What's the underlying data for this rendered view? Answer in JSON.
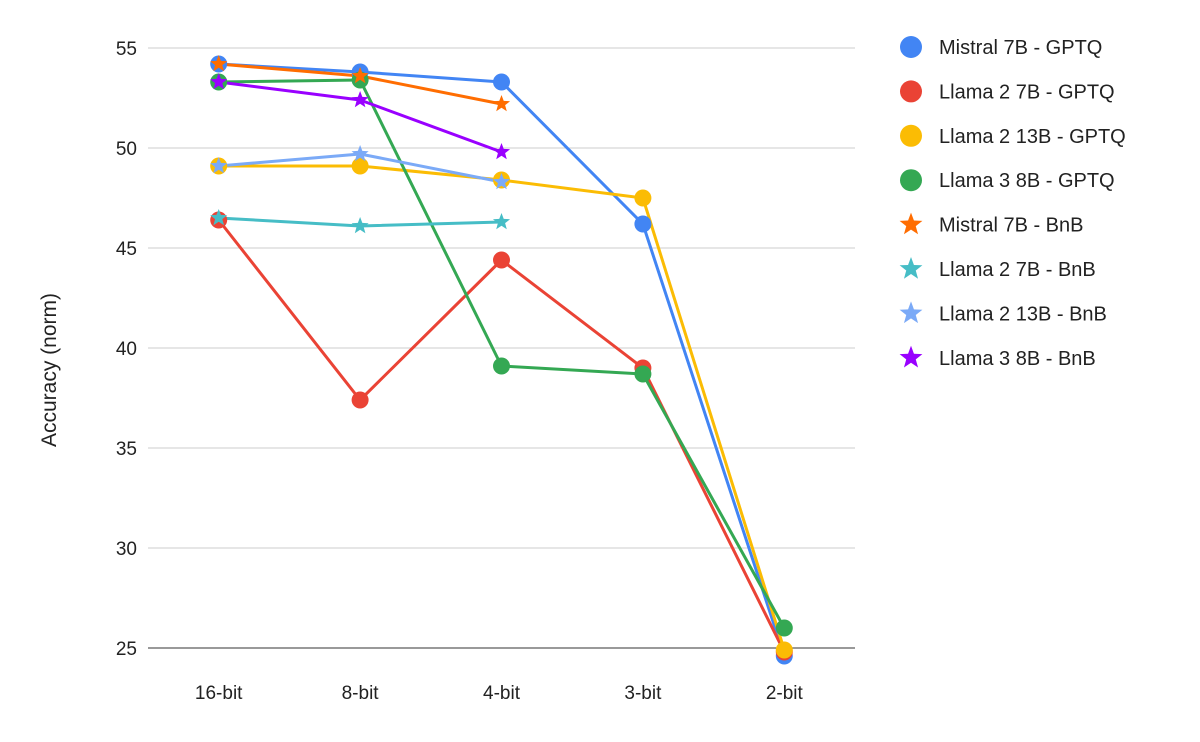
{
  "chart_data": {
    "type": "line",
    "title": "",
    "xlabel": "",
    "ylabel": "Accuracy (norm)",
    "categories": [
      "16-bit",
      "8-bit",
      "4-bit",
      "3-bit",
      "2-bit"
    ],
    "ylim": [
      25,
      55
    ],
    "yticks": [
      25,
      30,
      35,
      40,
      45,
      50,
      55
    ],
    "grid": true,
    "legend_position": "right",
    "series": [
      {
        "name": "Mistral 7B - GPTQ",
        "marker": "circle",
        "color": "#4285f4",
        "values": [
          54.2,
          53.8,
          53.3,
          46.2,
          24.6
        ]
      },
      {
        "name": "Llama 2 7B - GPTQ",
        "marker": "circle",
        "color": "#ea4335",
        "values": [
          46.4,
          37.4,
          44.4,
          39.0,
          24.8
        ]
      },
      {
        "name": "Llama 2 13B - GPTQ",
        "marker": "circle",
        "color": "#fbbc04",
        "values": [
          49.1,
          49.1,
          48.4,
          47.5,
          24.9
        ]
      },
      {
        "name": "Llama 3 8B - GPTQ",
        "marker": "circle",
        "color": "#34a853",
        "values": [
          53.3,
          53.4,
          39.1,
          38.7,
          26.0
        ]
      },
      {
        "name": "Mistral 7B - BnB",
        "marker": "star",
        "color": "#ff6d01",
        "values": [
          54.2,
          53.6,
          52.2,
          null,
          null
        ]
      },
      {
        "name": "Llama 2 7B - BnB",
        "marker": "star",
        "color": "#46bdc6",
        "values": [
          46.5,
          46.1,
          46.3,
          null,
          null
        ]
      },
      {
        "name": "Llama 2 13B - BnB",
        "marker": "star",
        "color": "#7baaf7",
        "values": [
          49.1,
          49.7,
          48.3,
          null,
          null
        ]
      },
      {
        "name": "Llama 3 8B - BnB",
        "marker": "star",
        "color": "#9900ff",
        "values": [
          53.3,
          52.4,
          49.8,
          null,
          null
        ]
      }
    ]
  }
}
